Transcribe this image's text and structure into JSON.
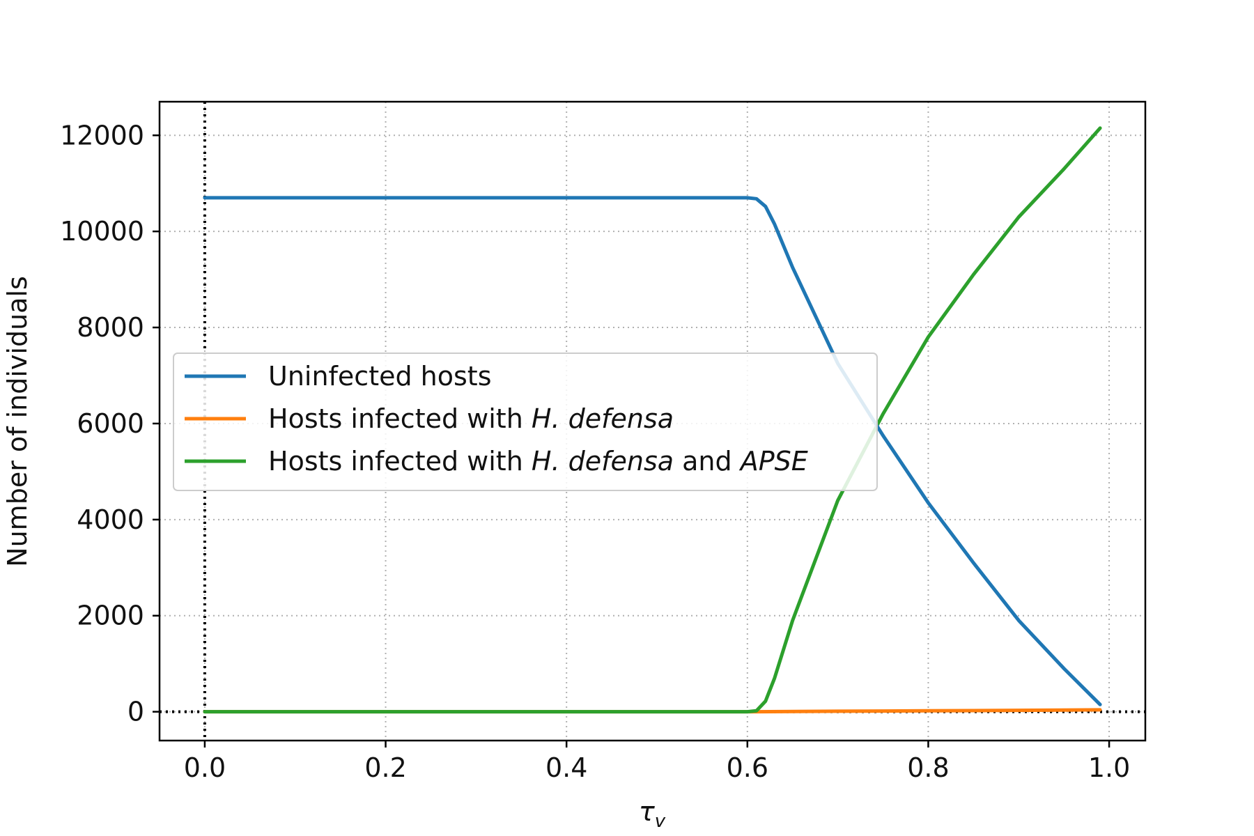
{
  "chart_data": {
    "type": "line",
    "title": "",
    "xlabel_main": "τ",
    "xlabel_sub": "v",
    "ylabel": "Number of individuals",
    "xlim": [
      -0.05,
      1.04
    ],
    "ylim": [
      -600,
      12700
    ],
    "xticks": [
      0.0,
      0.2,
      0.4,
      0.6,
      0.8,
      1.0
    ],
    "xtick_labels": [
      "0.0",
      "0.2",
      "0.4",
      "0.6",
      "0.8",
      "1.0"
    ],
    "yticks": [
      0,
      2000,
      4000,
      6000,
      8000,
      10000,
      12000
    ],
    "ytick_labels": [
      "0",
      "2000",
      "4000",
      "6000",
      "8000",
      "10000",
      "12000"
    ],
    "grid": true,
    "reference_lines": {
      "vertical_x": 0.0,
      "horizontal_y": 0
    },
    "legend_position": "center-left",
    "series": [
      {
        "name": "Uninfected hosts",
        "color": "#1f77b4",
        "x": [
          0.0,
          0.1,
          0.2,
          0.3,
          0.4,
          0.5,
          0.6,
          0.61,
          0.62,
          0.63,
          0.65,
          0.7,
          0.75,
          0.8,
          0.85,
          0.9,
          0.95,
          0.99
        ],
        "y": [
          10700,
          10700,
          10700,
          10700,
          10700,
          10700,
          10700,
          10680,
          10520,
          10150,
          9250,
          7250,
          5750,
          4350,
          3100,
          1900,
          900,
          150
        ]
      },
      {
        "name": "Hosts infected with H. defensa",
        "legend_plain": "Hosts infected with ",
        "legend_italic": "H. defensa",
        "legend_tail_plain": "",
        "legend_tail_italic": "",
        "color": "#ff7f0e",
        "x": [
          0.0,
          0.2,
          0.4,
          0.6,
          0.61,
          0.7,
          0.8,
          0.9,
          0.99
        ],
        "y": [
          0,
          0,
          0,
          0,
          0,
          10,
          20,
          30,
          40
        ]
      },
      {
        "name": "Hosts infected with H. defensa and APSE",
        "legend_plain": "Hosts infected with ",
        "legend_italic": "H. defensa",
        "legend_tail_plain": " and ",
        "legend_tail_italic": "APSE",
        "color": "#2ca02c",
        "x": [
          0.0,
          0.2,
          0.4,
          0.6,
          0.61,
          0.62,
          0.63,
          0.65,
          0.7,
          0.75,
          0.8,
          0.85,
          0.9,
          0.95,
          0.99
        ],
        "y": [
          0,
          0,
          0,
          0,
          20,
          220,
          700,
          1900,
          4400,
          6200,
          7800,
          9100,
          10300,
          11300,
          12150
        ]
      }
    ]
  }
}
